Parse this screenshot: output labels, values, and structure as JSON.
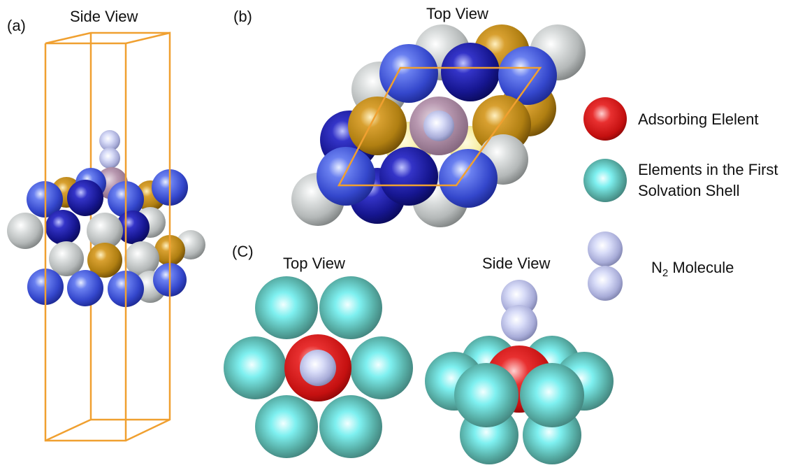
{
  "panels": {
    "a": {
      "letter": "(a)",
      "title": "Side View"
    },
    "b": {
      "letter": "(b)",
      "title": "Top View"
    },
    "c": {
      "letter": "(C)",
      "title_top": "Top View",
      "title_side": "Side View"
    }
  },
  "legend": {
    "adsorbing": "Adsorbing Elelent",
    "solvation_line1": "Elements in the First",
    "solvation_line2": "Solvation Shell",
    "n2_prefix": "N",
    "n2_subscript": "2",
    "n2_suffix": " Molecule"
  },
  "colors": {
    "cell_box": "#f0a030",
    "blue_atom": "#3a52d8",
    "darkblue_atom": "#1a1a9e",
    "gold_atom": "#c08a18",
    "silver_atom": "#c8cbcb",
    "mauve_atom": "#b090a8",
    "yellow_atom": "#f8f0a0",
    "adsorbing_atom": "#d01818",
    "solvation_atom": "#58b8b0",
    "n2_atom": "#b8bce8"
  }
}
